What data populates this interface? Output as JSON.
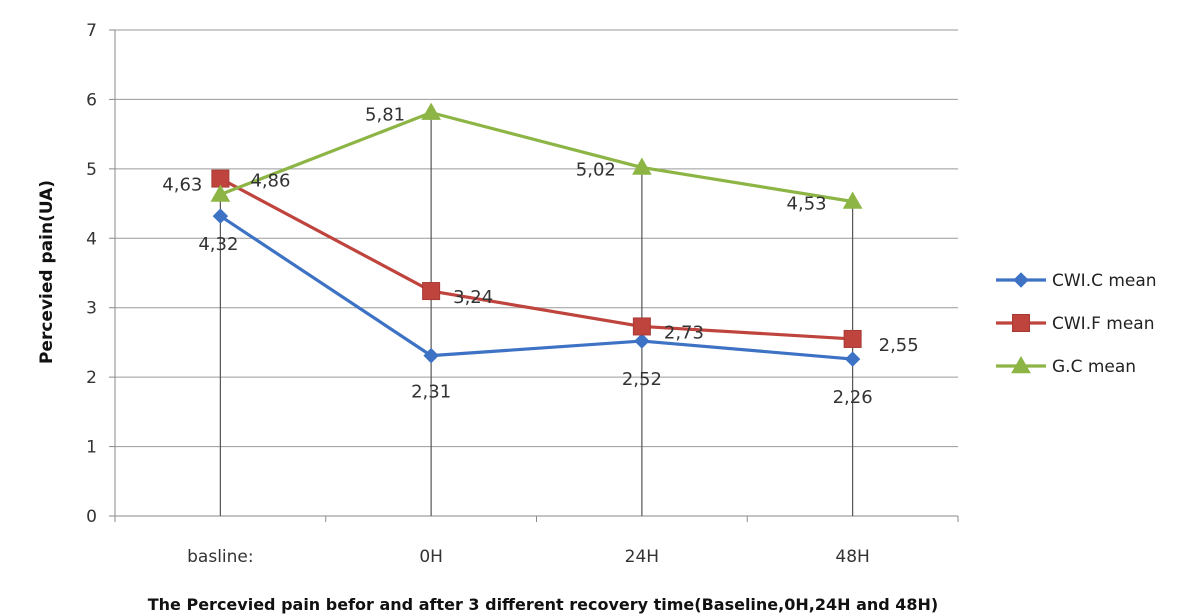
{
  "chart_data": {
    "type": "line",
    "title": "",
    "xlabel": "The Percevied pain befor and after 3 different recovery time(Baseline,0H,24H and 48H)",
    "ylabel": "Percevied pain(UA)",
    "categories": [
      "basline:",
      "0H",
      "24H",
      "48H"
    ],
    "ylim": [
      0,
      7
    ],
    "yticks": [
      "0",
      "1",
      "2",
      "3",
      "4",
      "5",
      "6",
      "7"
    ],
    "grid": "horizontal",
    "legend_position": "right",
    "series": [
      {
        "name": "CWI.C mean",
        "color": "#3d72c4",
        "marker": "diamond",
        "values": [
          4.32,
          2.31,
          2.52,
          2.26
        ],
        "labels": [
          "4,32",
          "2,31",
          "2,52",
          "2,26"
        ]
      },
      {
        "name": "CWI.F mean",
        "color": "#c0443e",
        "marker": "square",
        "values": [
          4.86,
          3.24,
          2.73,
          2.55
        ],
        "labels": [
          "4,86",
          "3,24",
          "2,73",
          "2,55"
        ]
      },
      {
        "name": "G.C mean",
        "color": "#8db545",
        "marker": "triangle",
        "values": [
          4.63,
          5.81,
          5.02,
          4.53
        ],
        "labels": [
          "4,63",
          "5,81",
          "5,02",
          "4,53"
        ]
      }
    ]
  }
}
